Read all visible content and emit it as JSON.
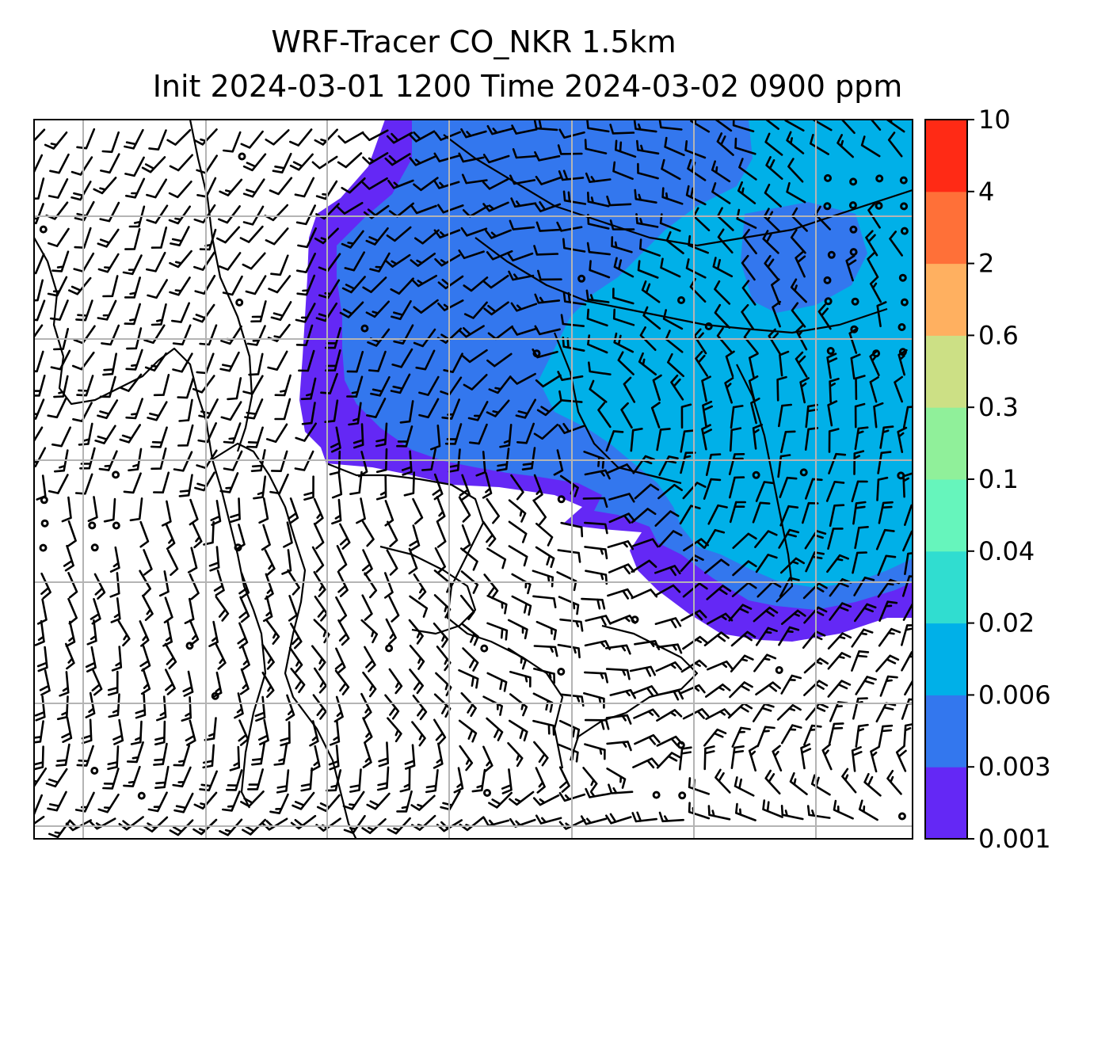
{
  "chart_data": {
    "type": "heatmap",
    "title_line1": "WRF-Tracer CO_NKR 1.5km",
    "title_line2": "Init 2024-03-01 1200 Time 2024-03-02 0900 ppm",
    "grid": true,
    "colorbar_position": "right",
    "colorbar": {
      "levels": [
        "0.001",
        "0.003",
        "0.006",
        "0.02",
        "0.04",
        "0.1",
        "0.3",
        "0.6",
        "2",
        "4",
        "10"
      ],
      "colors": [
        "#6428f5",
        "#3377ee",
        "#00b0e8",
        "#30ddd0",
        "#66f5bc",
        "#90f09a",
        "#cce085",
        "#ffb060",
        "#ff7038",
        "#ff2a15"
      ]
    },
    "overlays": [
      "wind-barbs",
      "coastlines"
    ],
    "filled_regions": [
      {
        "level": "0.001-0.003",
        "color": "#6428f5"
      },
      {
        "level": "0.003-0.006",
        "color": "#3377ee"
      },
      {
        "level": "0.006-0.02",
        "color": "#00b0e8"
      }
    ]
  }
}
